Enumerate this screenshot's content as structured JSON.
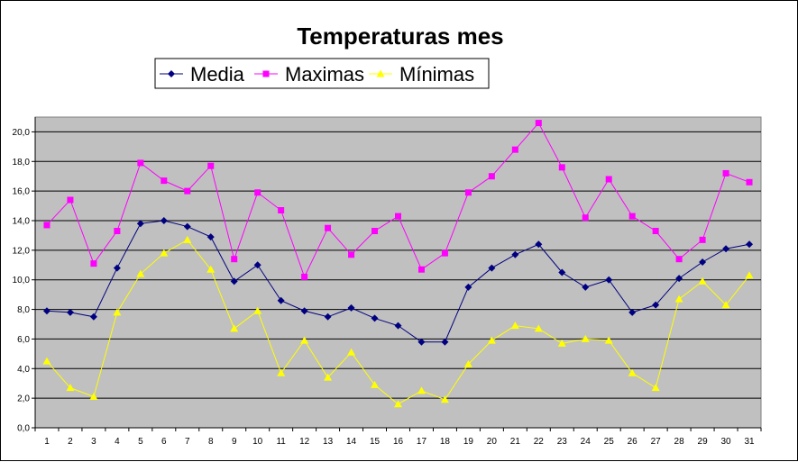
{
  "chart_data": {
    "type": "line",
    "title": "Temperaturas mes",
    "xlabel": "",
    "ylabel": "",
    "categories": [
      "1",
      "2",
      "3",
      "4",
      "5",
      "6",
      "7",
      "8",
      "9",
      "10",
      "11",
      "12",
      "13",
      "14",
      "15",
      "16",
      "17",
      "18",
      "19",
      "20",
      "21",
      "22",
      "23",
      "24",
      "25",
      "26",
      "27",
      "28",
      "29",
      "30",
      "31"
    ],
    "yticks": [
      "0,0",
      "2,0",
      "4,0",
      "6,0",
      "8,0",
      "10,0",
      "12,0",
      "14,0",
      "16,0",
      "18,0",
      "20,0"
    ],
    "ylim": [
      0,
      21
    ],
    "grid": true,
    "legend_position": "top",
    "plot_background": "#c0c0c0",
    "series": [
      {
        "name": "Media",
        "color": "#000080",
        "marker": "diamond",
        "values": [
          7.9,
          7.8,
          7.5,
          10.8,
          13.8,
          14.0,
          13.6,
          12.9,
          9.9,
          11.0,
          8.6,
          7.9,
          7.5,
          8.1,
          7.4,
          6.9,
          5.8,
          5.8,
          9.5,
          10.8,
          11.7,
          12.4,
          10.5,
          9.5,
          10.0,
          7.8,
          8.3,
          10.1,
          11.2,
          12.1,
          12.4
        ]
      },
      {
        "name": "Maximas",
        "color": "#ff00ff",
        "marker": "square",
        "values": [
          13.7,
          15.4,
          11.1,
          13.3,
          17.9,
          16.7,
          16.0,
          17.7,
          11.4,
          15.9,
          14.7,
          10.2,
          13.5,
          11.7,
          13.3,
          14.3,
          10.7,
          11.8,
          15.9,
          17.0,
          18.8,
          20.6,
          17.6,
          14.2,
          16.8,
          14.3,
          13.3,
          11.4,
          12.7,
          17.2,
          16.6
        ]
      },
      {
        "name": "Mínimas",
        "color": "#ffff00",
        "marker": "triangle",
        "values": [
          4.5,
          2.7,
          2.1,
          7.8,
          10.4,
          11.8,
          12.7,
          10.7,
          6.7,
          7.9,
          3.7,
          5.9,
          3.4,
          5.1,
          2.9,
          1.6,
          2.5,
          1.9,
          4.3,
          5.9,
          6.9,
          6.7,
          5.7,
          6.0,
          5.9,
          3.7,
          2.7,
          8.7,
          9.9,
          8.3,
          10.3
        ]
      }
    ]
  }
}
